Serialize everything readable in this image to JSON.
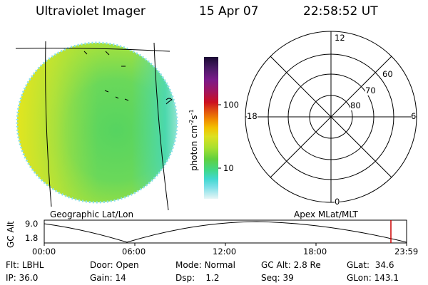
{
  "header": {
    "instrument": "Ultraviolet Imager",
    "date": "15 Apr 07",
    "time": "22:58:52 UT"
  },
  "image_panel": {
    "caption": "Geographic Lat/Lon"
  },
  "colorbar": {
    "unit_prefix": "photon cm",
    "unit_exp1": "-2",
    "unit_mid": "s",
    "unit_exp2": "-1",
    "ticks": [
      "100",
      "10"
    ],
    "colors": [
      "#1a0a33",
      "#4a1a66",
      "#7a1a8a",
      "#a01560",
      "#cc1020",
      "#e05010",
      "#f08a00",
      "#f2c200",
      "#dde020",
      "#a8e030",
      "#60d040",
      "#40d88a",
      "#40d8d0",
      "#80e0e8",
      "#c8eef2",
      "#e8f6f6"
    ]
  },
  "polar_plot": {
    "caption": "Apex MLat/MLT",
    "mlt_labels": [
      "12",
      "18",
      "6",
      "0"
    ],
    "mlat_labels": [
      "60",
      "70",
      "80"
    ]
  },
  "altitude_plot": {
    "ylabel": "GC Alt",
    "y_ticks": [
      "9.0",
      "1.8"
    ],
    "x_ticks": [
      "00:00",
      "06:00",
      "12:00",
      "18:00",
      "23:59"
    ],
    "marker_color": "#cc0000"
  },
  "status": {
    "row1": [
      {
        "key": "Flt:",
        "value": "LBHL"
      },
      {
        "key": "Door:",
        "value": "Open"
      },
      {
        "key": "Mode:",
        "value": "Normal"
      },
      {
        "key": "GC Alt:",
        "value": "2.8 Re"
      },
      {
        "key": "GLat:",
        "value": "34.6"
      }
    ],
    "row2": [
      {
        "key": "IP:",
        "value": "36.0"
      },
      {
        "key": "Gain:",
        "value": "14"
      },
      {
        "key": "Dsp:",
        "value": "1.2"
      },
      {
        "key": "Seq:",
        "value": "39"
      },
      {
        "key": "GLon:",
        "value": "143.1"
      }
    ]
  }
}
